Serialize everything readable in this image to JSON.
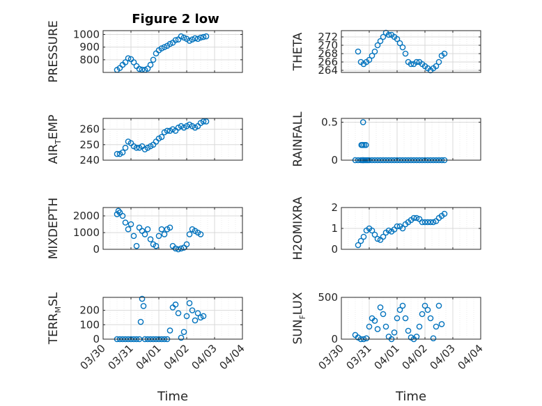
{
  "chart_data": {
    "title": "Figure 2 low",
    "type": "scatter",
    "marker_color": "#0072BD",
    "marker": "open-circle",
    "grid": true,
    "x_unit": "date",
    "x_ticks": [
      "03/30",
      "03/31",
      "04/01",
      "04/02",
      "04/03",
      "04/04"
    ],
    "x_axis_label": "Time",
    "panels": [
      {
        "id": "pressure",
        "ylabel": "PRESSURE",
        "ylim": [
          700,
          1030
        ],
        "yticks": [
          800,
          900,
          1000
        ],
        "x": [
          0.5,
          0.6,
          0.7,
          0.8,
          0.9,
          1.0,
          1.1,
          1.2,
          1.3,
          1.4,
          1.5,
          1.6,
          1.7,
          1.8,
          1.9,
          2.0,
          2.1,
          2.2,
          2.3,
          2.4,
          2.5,
          2.6,
          2.7,
          2.8,
          2.9,
          3.0,
          3.1,
          3.2,
          3.3,
          3.4,
          3.5,
          3.6,
          3.7
        ],
        "y": [
          720,
          735,
          760,
          780,
          812,
          805,
          780,
          750,
          728,
          722,
          720,
          730,
          760,
          800,
          850,
          875,
          890,
          900,
          910,
          925,
          935,
          955,
          960,
          985,
          975,
          965,
          950,
          960,
          970,
          965,
          975,
          980,
          985
        ]
      },
      {
        "id": "theta",
        "ylabel": "THETA",
        "ylim": [
          263.5,
          273.5
        ],
        "yticks": [
          264,
          266,
          268,
          270,
          272
        ],
        "x": [
          0.6,
          0.7,
          0.8,
          0.9,
          1.0,
          1.1,
          1.2,
          1.3,
          1.4,
          1.5,
          1.6,
          1.7,
          1.8,
          1.9,
          2.0,
          2.1,
          2.2,
          2.3,
          2.4,
          2.5,
          2.6,
          2.7,
          2.8,
          2.9,
          3.0,
          3.1,
          3.2,
          3.3,
          3.4,
          3.5,
          3.6,
          3.7
        ],
        "y": [
          268.5,
          266.0,
          265.5,
          266.0,
          266.5,
          267.5,
          268.5,
          270.0,
          271.0,
          272.0,
          273.0,
          272.5,
          272.5,
          272.0,
          271.5,
          270.5,
          269.5,
          268.0,
          266.0,
          265.5,
          265.5,
          266.0,
          266.0,
          265.5,
          265.0,
          264.5,
          264.0,
          264.5,
          265.0,
          266.0,
          267.5,
          268.0
        ]
      },
      {
        "id": "air_temp",
        "ylabel_main": "AIR",
        "ylabel_sub": "T",
        "ylabel_rest": "EMP",
        "ylim": [
          240,
          267
        ],
        "yticks": [
          240,
          250,
          260
        ],
        "x": [
          0.5,
          0.6,
          0.7,
          0.8,
          0.9,
          1.0,
          1.1,
          1.2,
          1.3,
          1.4,
          1.5,
          1.6,
          1.7,
          1.8,
          1.9,
          2.0,
          2.1,
          2.2,
          2.3,
          2.4,
          2.5,
          2.6,
          2.7,
          2.8,
          2.9,
          3.0,
          3.1,
          3.2,
          3.3,
          3.4,
          3.5,
          3.6,
          3.7
        ],
        "y": [
          244,
          244,
          245,
          248,
          252,
          251,
          249,
          248,
          248,
          249,
          247,
          248,
          249,
          250,
          252,
          254,
          255,
          258,
          259,
          259,
          260,
          259,
          261,
          262,
          261,
          262,
          263,
          262,
          261,
          262,
          264,
          265,
          265
        ]
      },
      {
        "id": "rainfall",
        "ylabel": "RAINFALL",
        "ylim": [
          0,
          0.55
        ],
        "yticks": [
          0,
          0.5
        ],
        "x": [
          0.5,
          0.6,
          0.7,
          0.75,
          0.78,
          0.8,
          0.85,
          0.9,
          0.95,
          1.0,
          1.1,
          1.2,
          1.3,
          1.4,
          1.5,
          1.6,
          1.7,
          1.8,
          1.9,
          2.0,
          2.1,
          2.2,
          2.3,
          2.4,
          2.5,
          2.6,
          2.7,
          2.8,
          2.9,
          3.0,
          3.1,
          3.2,
          3.3,
          3.4,
          3.5,
          3.6,
          3.7,
          0.78,
          0.82,
          0.88,
          0.72,
          0.76
        ],
        "y": [
          0,
          0,
          0,
          0,
          0,
          0,
          0,
          0,
          0,
          0,
          0,
          0,
          0,
          0,
          0,
          0,
          0,
          0,
          0,
          0,
          0,
          0,
          0,
          0,
          0,
          0,
          0,
          0,
          0,
          0,
          0,
          0,
          0,
          0,
          0,
          0,
          0,
          0.5,
          0.2,
          0.2,
          0.2,
          0.2
        ]
      },
      {
        "id": "mixdepth",
        "ylabel": "MIXDEPTH",
        "ylim": [
          0,
          2500
        ],
        "yticks": [
          0,
          1000,
          2000
        ],
        "x": [
          0.5,
          0.55,
          0.6,
          0.7,
          0.8,
          0.9,
          1.0,
          1.1,
          1.2,
          1.3,
          1.4,
          1.5,
          1.6,
          1.7,
          1.8,
          1.9,
          2.0,
          2.1,
          2.2,
          2.3,
          2.4,
          2.5,
          2.6,
          2.7,
          2.8,
          2.9,
          3.0,
          3.1,
          3.2,
          3.3,
          3.4,
          3.5
        ],
        "y": [
          2100,
          2300,
          2200,
          2000,
          1600,
          1200,
          1500,
          800,
          200,
          1300,
          1100,
          900,
          1200,
          600,
          300,
          200,
          800,
          1200,
          900,
          1200,
          1300,
          200,
          50,
          0,
          50,
          100,
          300,
          900,
          1200,
          1100,
          1000,
          900
        ]
      },
      {
        "id": "h2omixra",
        "ylabel": "H2OMIXRA",
        "ylim": [
          0,
          2
        ],
        "yticks": [
          0,
          1,
          2
        ],
        "x": [
          0.6,
          0.7,
          0.8,
          0.9,
          1.0,
          1.1,
          1.2,
          1.3,
          1.4,
          1.5,
          1.6,
          1.7,
          1.8,
          1.9,
          2.0,
          2.1,
          2.2,
          2.3,
          2.4,
          2.5,
          2.6,
          2.7,
          2.8,
          2.9,
          3.0,
          3.1,
          3.2,
          3.3,
          3.4,
          3.5,
          3.6,
          3.7
        ],
        "y": [
          0.2,
          0.4,
          0.6,
          0.9,
          1.0,
          0.9,
          0.7,
          0.5,
          0.45,
          0.6,
          0.8,
          0.9,
          0.85,
          0.95,
          1.1,
          1.1,
          1.0,
          1.2,
          1.3,
          1.4,
          1.5,
          1.5,
          1.45,
          1.3,
          1.3,
          1.3,
          1.3,
          1.3,
          1.35,
          1.5,
          1.6,
          1.7
        ]
      },
      {
        "id": "terr_msl",
        "ylabel_main": "TERR",
        "ylabel_sub": "M",
        "ylabel_rest": "SL",
        "ylim": [
          0,
          290
        ],
        "yticks": [
          0,
          100,
          200
        ],
        "x": [
          0.5,
          0.6,
          0.7,
          0.8,
          0.9,
          1.0,
          1.1,
          1.2,
          1.3,
          1.35,
          1.4,
          1.45,
          1.5,
          1.6,
          1.7,
          1.8,
          1.9,
          2.0,
          2.1,
          2.2,
          2.3,
          2.4,
          2.5,
          2.6,
          2.7,
          2.8,
          2.9,
          3.0,
          3.1,
          3.2,
          3.3,
          3.4,
          3.5,
          3.6
        ],
        "y": [
          0,
          0,
          0,
          0,
          0,
          0,
          0,
          0,
          0,
          120,
          280,
          230,
          0,
          0,
          0,
          0,
          0,
          0,
          0,
          0,
          0,
          60,
          220,
          240,
          180,
          10,
          50,
          160,
          250,
          200,
          130,
          180,
          150,
          160
        ]
      },
      {
        "id": "sun_flux",
        "ylabel_main": "SUN",
        "ylabel_sub": "F",
        "ylabel_rest": "LUX",
        "ylim": [
          0,
          500
        ],
        "yticks": [
          0,
          500
        ],
        "x": [
          0.5,
          0.6,
          0.7,
          0.8,
          0.9,
          1.0,
          1.1,
          1.2,
          1.3,
          1.4,
          1.5,
          1.6,
          1.7,
          1.8,
          1.9,
          2.0,
          2.1,
          2.2,
          2.3,
          2.4,
          2.5,
          2.6,
          2.7,
          2.8,
          2.9,
          3.0,
          3.1,
          3.2,
          3.3,
          3.4,
          3.5,
          3.6
        ],
        "y": [
          50,
          20,
          0,
          0,
          10,
          150,
          250,
          220,
          120,
          380,
          300,
          150,
          30,
          0,
          80,
          250,
          350,
          400,
          250,
          100,
          20,
          0,
          30,
          150,
          300,
          400,
          350,
          250,
          10,
          150,
          400,
          180
        ]
      }
    ]
  }
}
